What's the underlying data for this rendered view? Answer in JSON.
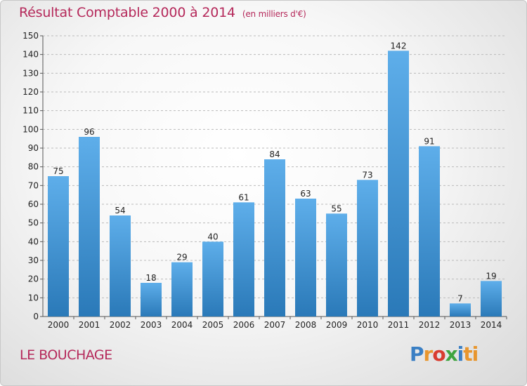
{
  "header": {
    "title": "Résultat Comptable 2000 à 2014",
    "unit": "(en milliers d'€)"
  },
  "footer": {
    "location": "LE BOUCHAGE",
    "logo": {
      "text": "Proxiti",
      "letters": [
        "P",
        "r",
        "o",
        "x",
        "i",
        "ti"
      ]
    }
  },
  "colors": {
    "title": "#b5285a",
    "bar_top": "#5eaeea",
    "bar_bottom": "#2a79b8",
    "grid": "#bbbbbb"
  },
  "chart_data": {
    "type": "bar",
    "title": "Résultat Comptable 2000 à 2014",
    "categories": [
      "2000",
      "2001",
      "2002",
      "2003",
      "2004",
      "2005",
      "2006",
      "2007",
      "2008",
      "2009",
      "2010",
      "2011",
      "2012",
      "2013",
      "2014"
    ],
    "values": [
      75,
      96,
      54,
      18,
      29,
      40,
      61,
      84,
      63,
      55,
      73,
      142,
      91,
      7,
      19
    ],
    "ylim": [
      0,
      150
    ],
    "yticks": [
      0,
      10,
      20,
      30,
      40,
      50,
      60,
      70,
      80,
      90,
      100,
      110,
      120,
      130,
      140,
      150
    ],
    "grid": true,
    "grid_style": "dashed horizontal"
  }
}
